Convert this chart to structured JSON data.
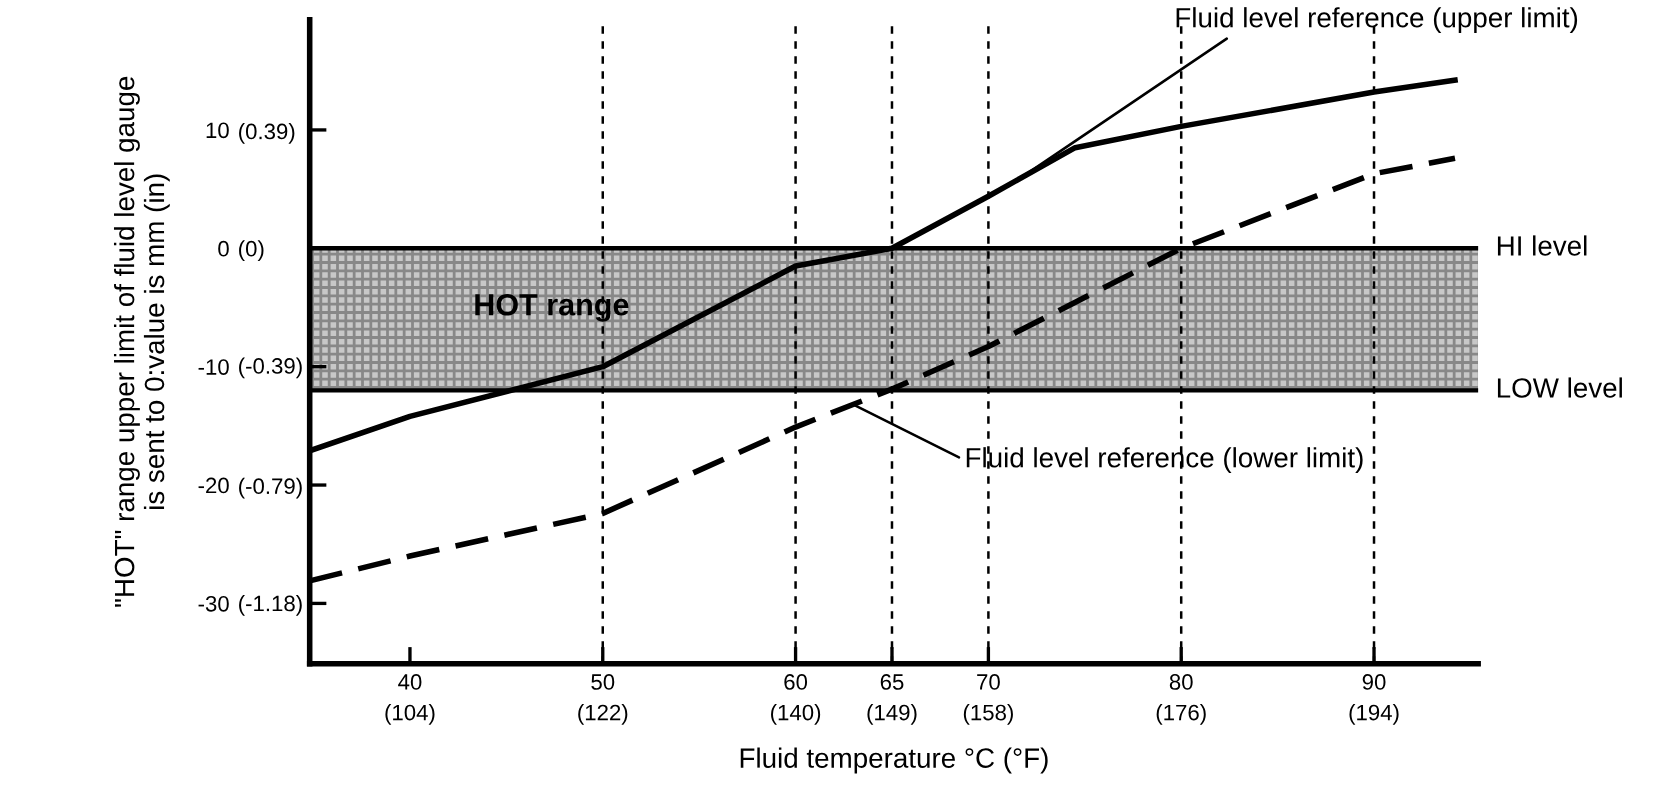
{
  "chart_data": {
    "type": "line",
    "xlabel": "Fluid temperature °C (°F)",
    "ylabel": "\"HOT\" range upper limit of fluid level gauge\nis sent to 0:value is mm (in)",
    "x": [
      34.8,
      40,
      50,
      60,
      65,
      70,
      74.5,
      80,
      90,
      94.2
    ],
    "series": [
      {
        "color": "#000000",
        "line_style": "solid",
        "values": [
          -17.1,
          -14.2,
          -10,
          -1.5,
          0,
          4.4,
          8.5,
          10.3,
          13.2,
          14.2
        ]
      },
      {
        "color": "#000000",
        "line_style": "dashed",
        "x": [
          34.8,
          40,
          50,
          60,
          65,
          70,
          80,
          90,
          94.2
        ],
        "values": [
          -28.1,
          -26,
          -22.4,
          -15.1,
          -11.9,
          -8.3,
          0,
          6.3,
          7.6
        ]
      }
    ],
    "xlim": [
      34.8,
      95.4
    ],
    "ylim": [
      -35.1,
      19.3
    ],
    "xticks": [
      40,
      50,
      60,
      65,
      70,
      80,
      90
    ],
    "yticks": [
      10,
      0,
      -10,
      -20,
      -30
    ],
    "x2lim": [
      94.64,
      203.72
    ],
    "x2ticks": [
      {
        "value": 104,
        "label": "(104)"
      },
      {
        "value": 122,
        "label": "(122)"
      },
      {
        "value": 140,
        "label": "(140)"
      },
      {
        "value": 149,
        "label": "(149)"
      },
      {
        "value": 158,
        "label": "(158)"
      },
      {
        "value": 176,
        "label": "(176)"
      },
      {
        "value": 194,
        "label": "(194)"
      }
    ],
    "y2lim": [
      -1.382,
      0.76
    ],
    "y2ticks": [
      {
        "value": 0.39,
        "label": "(0.39)"
      },
      {
        "value": 0,
        "label": "(0)"
      },
      {
        "value": -0.39,
        "label": "(-0.39)"
      },
      {
        "value": -0.79,
        "label": "(-0.79)"
      },
      {
        "value": -1.18,
        "label": "(-1.18)"
      }
    ],
    "bands": [
      {
        "axis": "y",
        "from": -12,
        "to": 0,
        "label": "HOT range",
        "color": "#c8c8c8"
      }
    ],
    "ref_lines": [
      {
        "axis": "y",
        "value": 0,
        "label": "HI level",
        "color": "#000000",
        "line_style": "solid"
      },
      {
        "axis": "y",
        "value": -12,
        "label": "LOW level",
        "color": "#000000",
        "line_style": "solid"
      },
      {
        "axis": "x",
        "value": 50,
        "color": "#000000",
        "line_style": "dotted"
      },
      {
        "axis": "x",
        "value": 60,
        "color": "#000000",
        "line_style": "dotted"
      },
      {
        "axis": "x",
        "value": 65,
        "color": "#000000",
        "line_style": "dotted"
      },
      {
        "axis": "x",
        "value": 70,
        "color": "#000000",
        "line_style": "dotted"
      },
      {
        "axis": "x",
        "value": 80,
        "color": "#000000",
        "line_style": "dotted"
      },
      {
        "axis": "x",
        "value": 90,
        "color": "#000000",
        "line_style": "dotted"
      }
    ],
    "annotations": [
      {
        "text": "Fluid level reference (upper limit)",
        "x": 71,
        "y": 5.2
      },
      {
        "text": "Fluid level reference (lower limit)",
        "x": 63,
        "y": -13.2
      }
    ],
    "grid": false,
    "legend": false
  }
}
